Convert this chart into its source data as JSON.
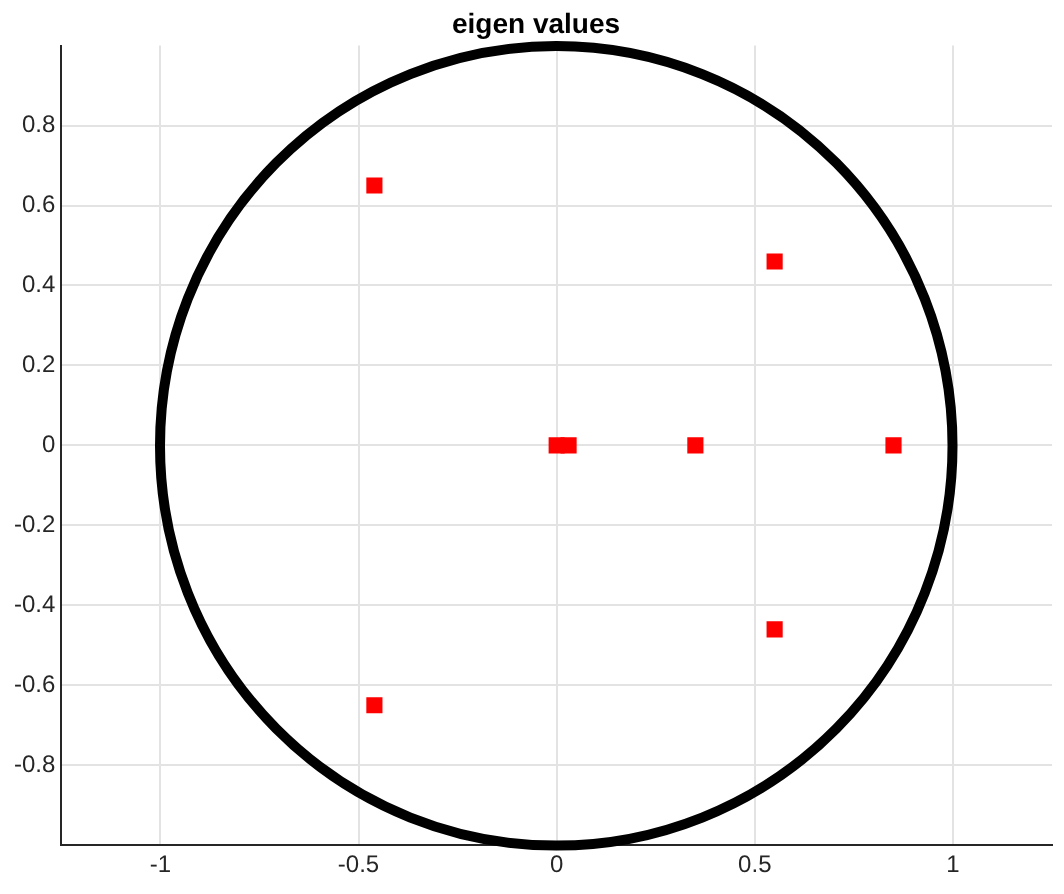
{
  "chart_data": {
    "type": "scatter",
    "title": "eigen values",
    "xlim": [
      -1.25,
      1.25
    ],
    "xticks": [
      -1,
      -0.5,
      0,
      0.5,
      1
    ],
    "ylim": [
      -1,
      1
    ],
    "yticks": [
      -0.8,
      -0.6,
      -0.4,
      -0.2,
      0,
      0.2,
      0.4,
      0.6,
      0.8
    ],
    "grid": true,
    "marker": "square",
    "series": [
      {
        "type": "scatter",
        "color": "#ff0000",
        "x": [
          -0.46,
          -0.46,
          0.55,
          0.55,
          0.85,
          0.35,
          0,
          0.03
        ],
        "values": [
          0.65,
          -0.65,
          0.46,
          -0.46,
          0,
          0,
          0,
          0
        ]
      }
    ]
  }
}
